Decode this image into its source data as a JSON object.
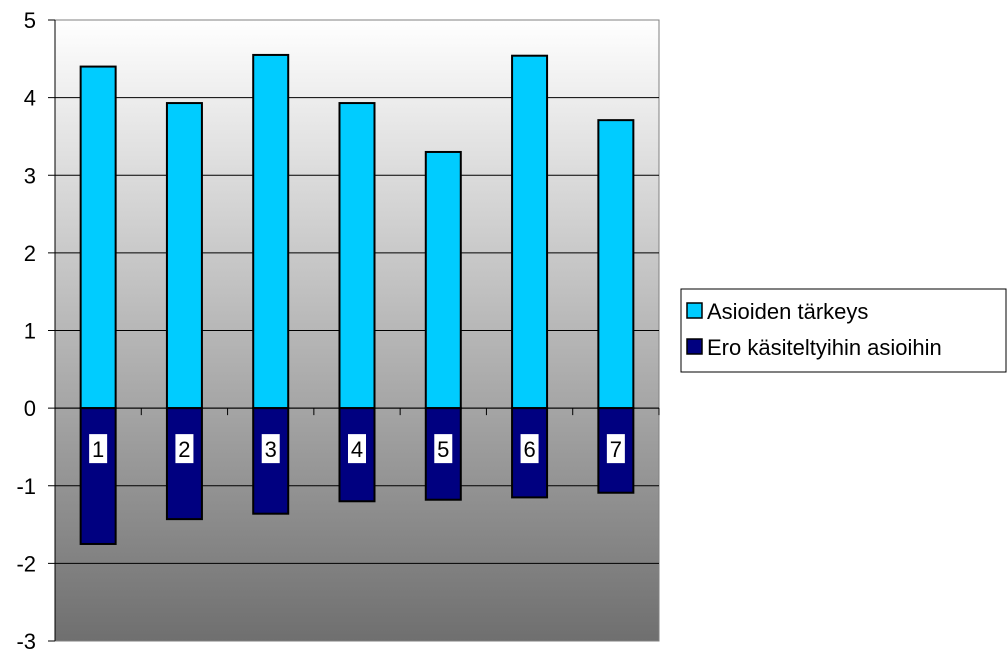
{
  "chart_data": {
    "type": "bar",
    "stacked": true,
    "categories": [
      "1",
      "2",
      "3",
      "4",
      "5",
      "6",
      "7"
    ],
    "series": [
      {
        "name": "Asioiden tärkeys",
        "color": "#00ccff",
        "values": [
          4.4,
          3.93,
          4.55,
          3.93,
          3.3,
          4.54,
          3.71
        ]
      },
      {
        "name": "Ero käsiteltyihin asioihin",
        "color": "#000080",
        "values": [
          -1.75,
          -1.43,
          -1.36,
          -1.2,
          -1.18,
          -1.15,
          -1.09
        ]
      }
    ],
    "ylim": [
      -3,
      5
    ],
    "yticks": [
      -3,
      -2,
      -1,
      0,
      1,
      2,
      3,
      4,
      5
    ],
    "grid": true,
    "legend_position": "right",
    "background": "gradient light-gray to dark-gray"
  }
}
